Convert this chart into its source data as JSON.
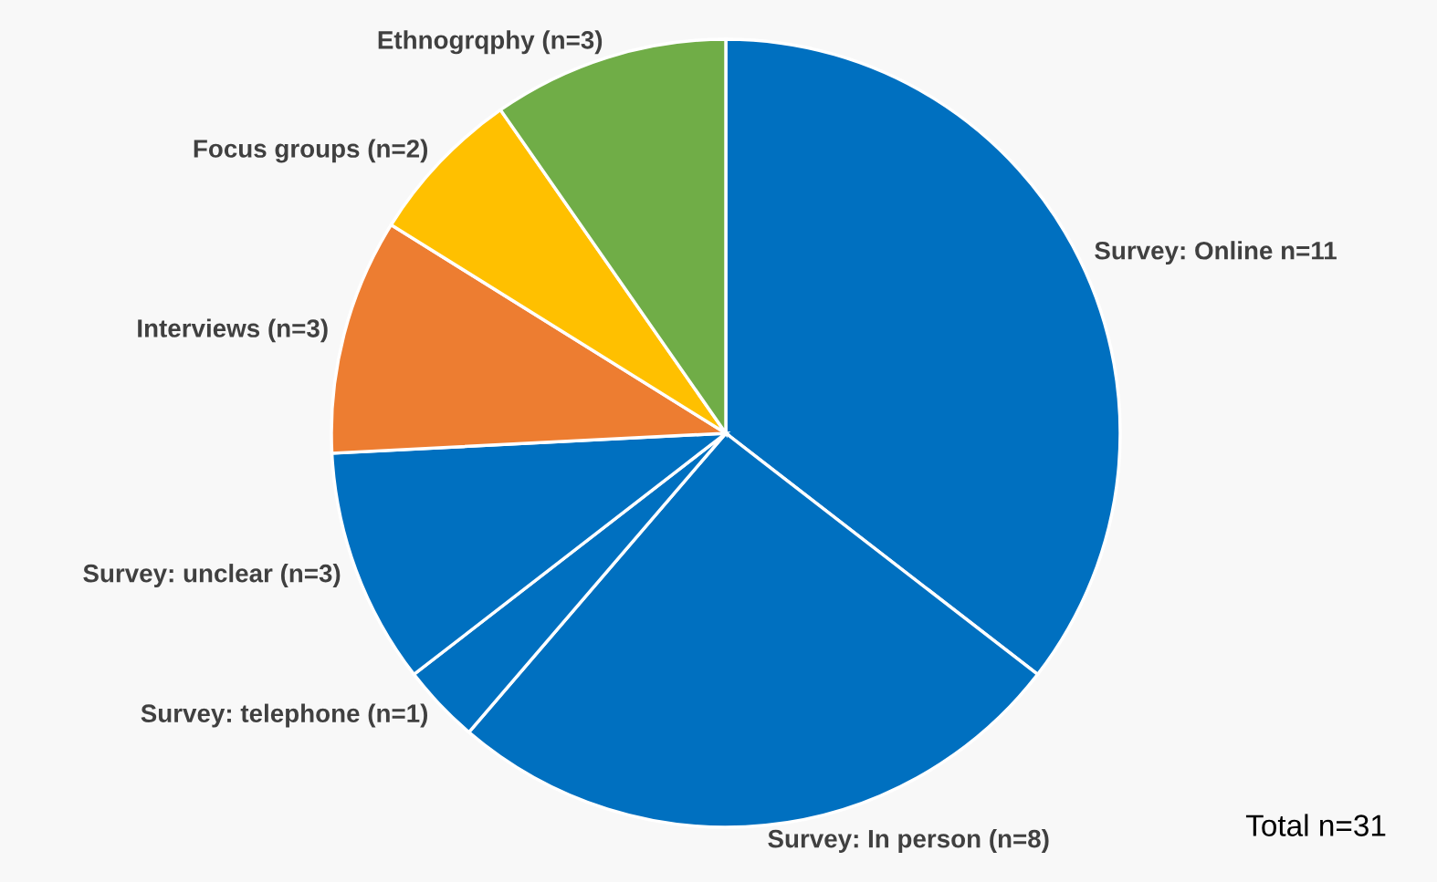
{
  "chart_data": {
    "type": "pie",
    "categories": [
      "Survey: Online n=11",
      "Survey: In person (n=8)",
      "Survey: telephone (n=1)",
      "Survey: unclear (n=3)",
      "Interviews (n=3)",
      "Focus groups (n=2)",
      "Ethnogrqphy (n=3)"
    ],
    "values": [
      11,
      8,
      1,
      3,
      3,
      2,
      3
    ],
    "colors": [
      "#0070c0",
      "#0070c0",
      "#0070c0",
      "#0070c0",
      "#ed7d31",
      "#ffc000",
      "#70ad47"
    ],
    "annotations": [
      "Total n=31"
    ]
  }
}
